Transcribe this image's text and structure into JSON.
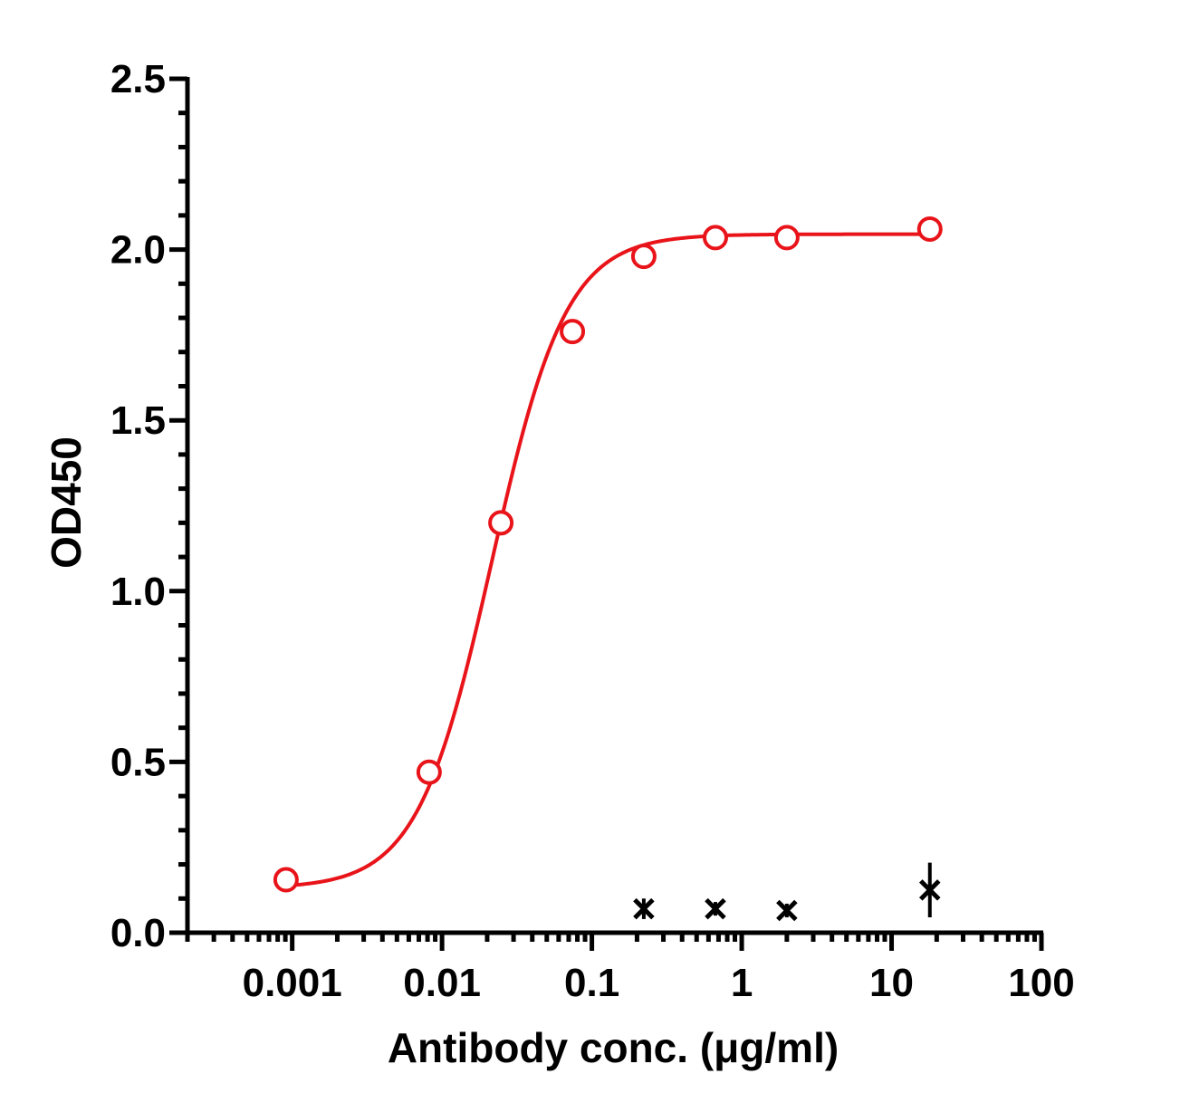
{
  "chart_data": {
    "type": "scatter",
    "title": "",
    "xlabel": "Antibody conc. (μg/ml)",
    "ylabel": "OD450",
    "x_scale": "log",
    "xlim": [
      0.0002,
      100
    ],
    "ylim": [
      0,
      2.5
    ],
    "x_ticks": [
      {
        "value": 0.001,
        "label": "0.001"
      },
      {
        "value": 0.01,
        "label": "0.01"
      },
      {
        "value": 0.1,
        "label": "0.1"
      },
      {
        "value": 1,
        "label": "1"
      },
      {
        "value": 10,
        "label": "10"
      },
      {
        "value": 100,
        "label": "100"
      }
    ],
    "y_ticks": [
      {
        "value": 0.0,
        "label": "0.0"
      },
      {
        "value": 0.5,
        "label": "0.5"
      },
      {
        "value": 1.0,
        "label": "1.0"
      },
      {
        "value": 1.5,
        "label": "1.5"
      },
      {
        "value": 2.0,
        "label": "2.0"
      },
      {
        "value": 2.5,
        "label": "2.5"
      }
    ],
    "grid": false,
    "series": [
      {
        "marker": "open-circle",
        "color": "#e8141a",
        "fit": "4PL",
        "fit_params": {
          "bottom": 0.13,
          "top": 2.045,
          "ec50": 0.0215,
          "hill": 1.75
        },
        "x": [
          0.00091,
          0.0082,
          0.0247,
          0.0741,
          0.222,
          0.667,
          2.0,
          18.0
        ],
        "y": [
          0.155,
          0.47,
          1.2,
          1.76,
          1.98,
          2.035,
          2.035,
          2.06
        ]
      },
      {
        "marker": "cross",
        "color": "#000000",
        "x": [
          0.222,
          0.667,
          2.0,
          18.0
        ],
        "y": [
          0.07,
          0.07,
          0.065,
          0.125
        ],
        "error": [
          0.03,
          0.02,
          0.02,
          0.08
        ]
      }
    ]
  }
}
